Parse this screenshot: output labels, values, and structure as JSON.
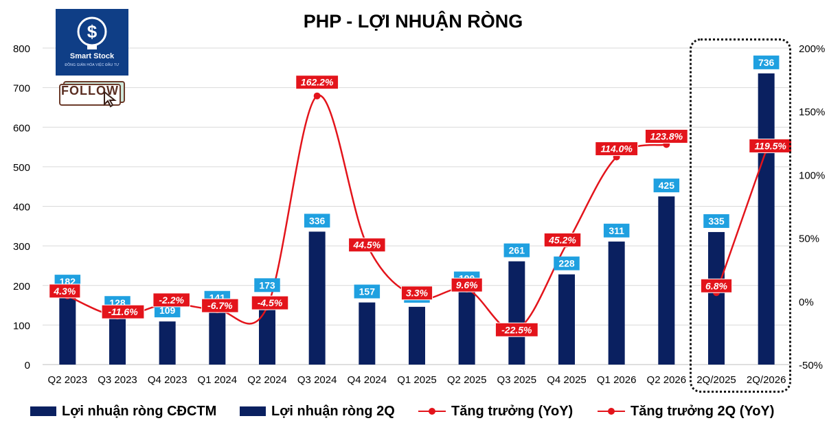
{
  "logo": {
    "brand": "Smart Stock",
    "tagline": "ĐỒNG GIẢN HÓA VIỆC ĐẦU TƯ"
  },
  "follow_label": "FOLLOW",
  "legend": [
    {
      "label": "Lợi nhuận ròng CĐCTM",
      "kind": "bar"
    },
    {
      "label": "Lợi nhuận ròng 2Q",
      "kind": "bar"
    },
    {
      "label": "Tăng trưởng (YoY)",
      "kind": "line"
    },
    {
      "label": "Tăng trưởng 2Q (YoY)",
      "kind": "line"
    }
  ],
  "chart_data": {
    "type": "bar",
    "title": "PHP - LỢI NHUẬN RÒNG",
    "categories": [
      "Q2 2023",
      "Q3 2023",
      "Q4 2023",
      "Q1 2024",
      "Q2 2024",
      "Q3 2024",
      "Q4 2024",
      "Q1 2025",
      "Q2 2025",
      "Q3 2025",
      "Q4 2025",
      "Q1 2026",
      "Q2 2026",
      "2Q/2025",
      "2Q/2026"
    ],
    "series": [
      {
        "name": "Lợi nhuận ròng CĐCTM",
        "kind": "bar",
        "color": "#0a2060",
        "values": [
          182,
          128,
          109,
          141,
          173,
          336,
          157,
          146,
          190,
          261,
          228,
          311,
          425,
          null,
          null
        ]
      },
      {
        "name": "Lợi nhuận ròng 2Q",
        "kind": "bar",
        "color": "#0a2060",
        "values": [
          null,
          null,
          null,
          null,
          null,
          null,
          null,
          null,
          null,
          null,
          null,
          null,
          null,
          335,
          736
        ]
      },
      {
        "name": "Tăng trưởng (YoY)",
        "kind": "line",
        "color": "#e3141b",
        "axis": "right",
        "values": [
          4.3,
          -11.6,
          -2.2,
          -6.7,
          -4.5,
          162.2,
          44.5,
          3.3,
          9.6,
          -22.5,
          45.2,
          114.0,
          123.8,
          null,
          null
        ],
        "labels": [
          "4.3%",
          "-11.6%",
          "-2.2%",
          "-6.7%",
          "-4.5%",
          "162.2%",
          "44.5%",
          "3.3%",
          "9.6%",
          "-22.5%",
          "45.2%",
          "114.0%",
          "123.8%",
          "",
          ""
        ]
      },
      {
        "name": "Tăng trưởng 2Q (YoY)",
        "kind": "line",
        "color": "#e3141b",
        "axis": "right",
        "values": [
          null,
          null,
          null,
          null,
          null,
          null,
          null,
          null,
          null,
          null,
          null,
          null,
          null,
          6.8,
          119.5
        ],
        "labels": [
          "",
          "",
          "",
          "",
          "",
          "",
          "",
          "",
          "",
          "",
          "",
          "",
          "",
          "6.8%",
          "119.5%"
        ]
      }
    ],
    "bar_labels": [
      "182",
      "128",
      "109",
      "141",
      "173",
      "336",
      "157",
      "146",
      "190",
      "261",
      "228",
      "311",
      "425",
      "335",
      "736"
    ],
    "ylim_left": [
      0,
      800
    ],
    "left_ticks": [
      "0",
      "100",
      "200",
      "300",
      "400",
      "500",
      "600",
      "700",
      "800"
    ],
    "ylim_right": [
      -50,
      200
    ],
    "right_ticks": [
      "-50%",
      "0%",
      "50%",
      "100%",
      "150%",
      "200%"
    ],
    "grid": true,
    "legend_position": "bottom",
    "colors": {
      "bar": "#0a2060",
      "bar_label_bg": "#1fa0e0",
      "line": "#e3141b",
      "line_label_bg": "#e3141b",
      "grid": "#d9d9d9"
    }
  }
}
